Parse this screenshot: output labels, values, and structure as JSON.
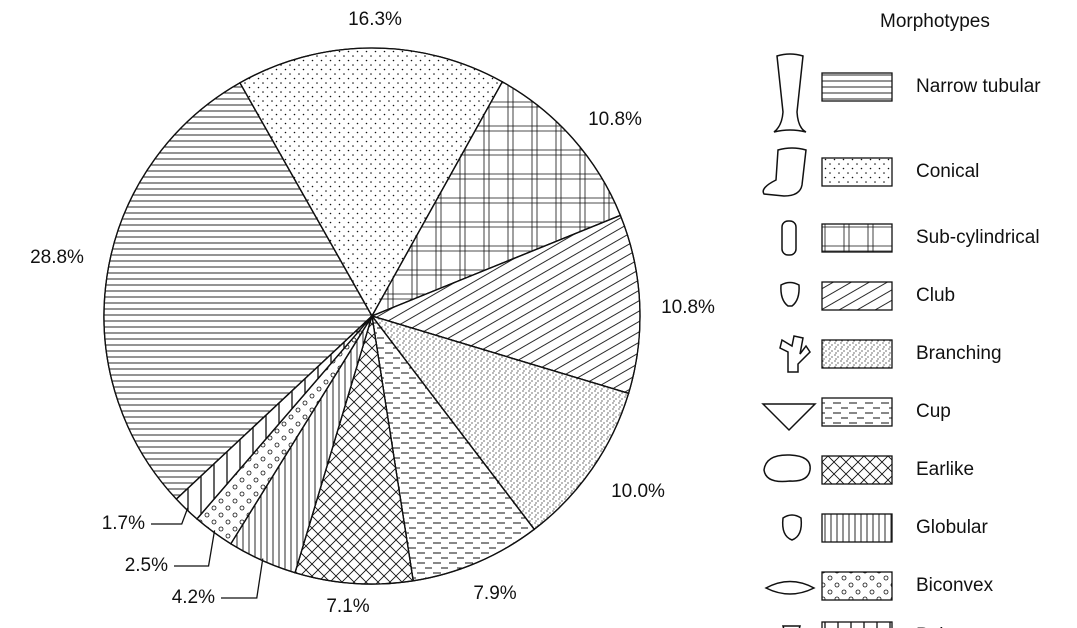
{
  "chart_data": {
    "type": "pie",
    "legend_title": "Morphotypes",
    "categories": [
      "Narrow tubular",
      "Conical",
      "Sub-cylindrical",
      "Club",
      "Branching",
      "Cup",
      "Earlike",
      "Globular",
      "Biconvex",
      "Palmate"
    ],
    "values": [
      28.8,
      16.3,
      10.8,
      10.8,
      10.0,
      7.9,
      7.1,
      4.2,
      2.5,
      1.7
    ],
    "value_labels": [
      "28.8%",
      "16.3%",
      "10.8%",
      "10.8%",
      "10.0%",
      "7.9%",
      "7.1%",
      "4.2%",
      "2.5%",
      "1.7%"
    ],
    "color": "#ffffff"
  }
}
